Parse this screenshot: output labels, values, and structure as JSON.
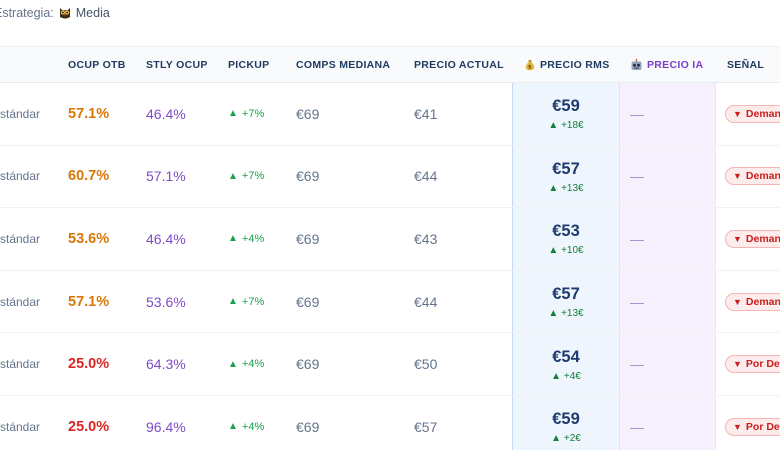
{
  "strategy": {
    "label": "Estrategia:",
    "value": "Media",
    "icon": "owl-icon"
  },
  "headers": {
    "ocup_otb": "OCUP OTB",
    "stly_ocup": "STLY OCUP",
    "pickup": "PICKUP",
    "comps_mediana": "COMPS MEDIANA",
    "precio_actual": "PRECIO ACTUAL",
    "precio_rms": "PRECIO RMS",
    "precio_ia": "PRECIO IA",
    "senal": "SEÑAL"
  },
  "colors": {
    "otb_orange": "#d97706",
    "otb_red": "#dc2626",
    "stly_purple": "#7e4bc9",
    "pickup_green": "#16a34a",
    "rms_navy": "#1e3a6e",
    "signal_red": "#c81e1e"
  },
  "rows": [
    {
      "room": "Estándar",
      "otb": "57.1%",
      "otb_level": "warn",
      "stly": "46.4%",
      "pickup": "+7%",
      "comps": "€69",
      "actual": "€41",
      "rms": "€59",
      "rms_delta": "+18€",
      "ia": "—",
      "signal": "Demanda"
    },
    {
      "room": "Estándar",
      "otb": "60.7%",
      "otb_level": "warn",
      "stly": "57.1%",
      "pickup": "+7%",
      "comps": "€69",
      "actual": "€44",
      "rms": "€57",
      "rms_delta": "+13€",
      "ia": "—",
      "signal": "Demanda"
    },
    {
      "room": "Estándar",
      "otb": "53.6%",
      "otb_level": "warn",
      "stly": "46.4%",
      "pickup": "+4%",
      "comps": "€69",
      "actual": "€43",
      "rms": "€53",
      "rms_delta": "+10€",
      "ia": "—",
      "signal": "Demanda"
    },
    {
      "room": "Estándar",
      "otb": "57.1%",
      "otb_level": "warn",
      "stly": "53.6%",
      "pickup": "+7%",
      "comps": "€69",
      "actual": "€44",
      "rms": "€57",
      "rms_delta": "+13€",
      "ia": "—",
      "signal": "Demanda"
    },
    {
      "room": "Estándar",
      "otb": "25.0%",
      "otb_level": "low",
      "stly": "64.3%",
      "pickup": "+4%",
      "comps": "€69",
      "actual": "€50",
      "rms": "€54",
      "rms_delta": "+4€",
      "ia": "—",
      "signal": "Por Debajo"
    },
    {
      "room": "Estándar",
      "otb": "25.0%",
      "otb_level": "low",
      "stly": "96.4%",
      "pickup": "+4%",
      "comps": "€69",
      "actual": "€57",
      "rms": "€59",
      "rms_delta": "+2€",
      "ia": "—",
      "signal": "Por Debajo"
    }
  ]
}
